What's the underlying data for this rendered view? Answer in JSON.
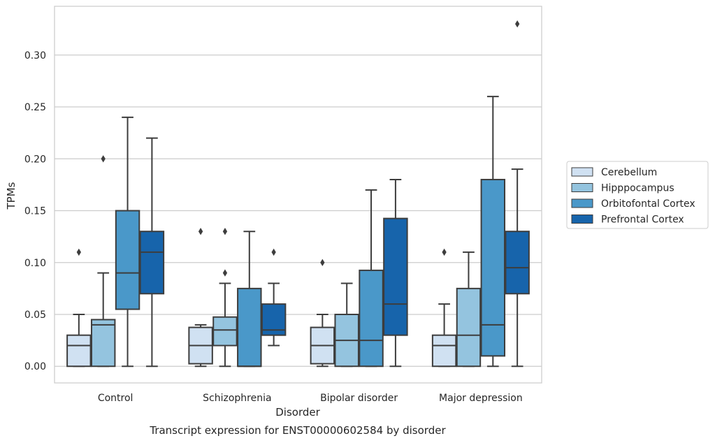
{
  "chart_data": {
    "type": "box",
    "caption": "Transcript expression for ENST00000602584 by disorder",
    "xlabel": "Disorder",
    "ylabel": "TPMs",
    "categories": [
      "Control",
      "Schizophrenia",
      "Bipolar disorder",
      "Major depression"
    ],
    "ylim": [
      -0.016,
      0.347
    ],
    "yticks": [
      0.0,
      0.05,
      0.1,
      0.15,
      0.2,
      0.25,
      0.3
    ],
    "ytick_labels": [
      "0.00",
      "0.05",
      "0.10",
      "0.15",
      "0.20",
      "0.25",
      "0.30"
    ],
    "grid": true,
    "legend_position": "right",
    "series": [
      {
        "name": "Cerebellum",
        "color": "#d0e1f2",
        "boxes": [
          {
            "whislo": 0.0,
            "q1": 0.0,
            "med": 0.02,
            "q3": 0.03,
            "whishi": 0.05,
            "fliers": [
              0.11
            ]
          },
          {
            "whislo": 0.0,
            "q1": 0.0025,
            "med": 0.02,
            "q3": 0.0375,
            "whishi": 0.04,
            "fliers": [
              0.13
            ]
          },
          {
            "whislo": 0.0,
            "q1": 0.0025,
            "med": 0.02,
            "q3": 0.0375,
            "whishi": 0.05,
            "fliers": [
              0.1
            ]
          },
          {
            "whislo": 0.0,
            "q1": 0.0,
            "med": 0.02,
            "q3": 0.03,
            "whishi": 0.06,
            "fliers": [
              0.11
            ]
          }
        ]
      },
      {
        "name": "Hipppocampus",
        "color": "#94c4df",
        "boxes": [
          {
            "whislo": 0.0,
            "q1": 0.0,
            "med": 0.04,
            "q3": 0.045,
            "whishi": 0.09,
            "fliers": [
              0.2
            ]
          },
          {
            "whislo": 0.0,
            "q1": 0.02,
            "med": 0.035,
            "q3": 0.0475,
            "whishi": 0.08,
            "fliers": [
              0.09,
              0.13
            ]
          },
          {
            "whislo": 0.0,
            "q1": 0.0,
            "med": 0.025,
            "q3": 0.05,
            "whishi": 0.08,
            "fliers": []
          },
          {
            "whislo": 0.0,
            "q1": 0.0,
            "med": 0.03,
            "q3": 0.075,
            "whishi": 0.11,
            "fliers": []
          }
        ]
      },
      {
        "name": "Orbitofontal Cortex",
        "color": "#4a98c9",
        "boxes": [
          {
            "whislo": 0.0,
            "q1": 0.055,
            "med": 0.09,
            "q3": 0.15,
            "whishi": 0.24,
            "fliers": []
          },
          {
            "whislo": 0.0,
            "q1": 0.0,
            "med": 0.0,
            "q3": 0.075,
            "whishi": 0.13,
            "fliers": []
          },
          {
            "whislo": 0.0,
            "q1": 0.0,
            "med": 0.025,
            "q3": 0.0925,
            "whishi": 0.17,
            "fliers": []
          },
          {
            "whislo": 0.0,
            "q1": 0.01,
            "med": 0.04,
            "q3": 0.18,
            "whishi": 0.26,
            "fliers": []
          }
        ]
      },
      {
        "name": "Prefrontal Cortex",
        "color": "#1764ab",
        "boxes": [
          {
            "whislo": 0.0,
            "q1": 0.07,
            "med": 0.11,
            "q3": 0.13,
            "whishi": 0.22,
            "fliers": []
          },
          {
            "whislo": 0.02,
            "q1": 0.03,
            "med": 0.035,
            "q3": 0.06,
            "whishi": 0.08,
            "fliers": [
              0.11
            ]
          },
          {
            "whislo": 0.0,
            "q1": 0.03,
            "med": 0.06,
            "q3": 0.1425,
            "whishi": 0.18,
            "fliers": []
          },
          {
            "whislo": 0.0,
            "q1": 0.07,
            "med": 0.095,
            "q3": 0.13,
            "whishi": 0.19,
            "fliers": [
              0.33
            ]
          }
        ]
      }
    ]
  }
}
